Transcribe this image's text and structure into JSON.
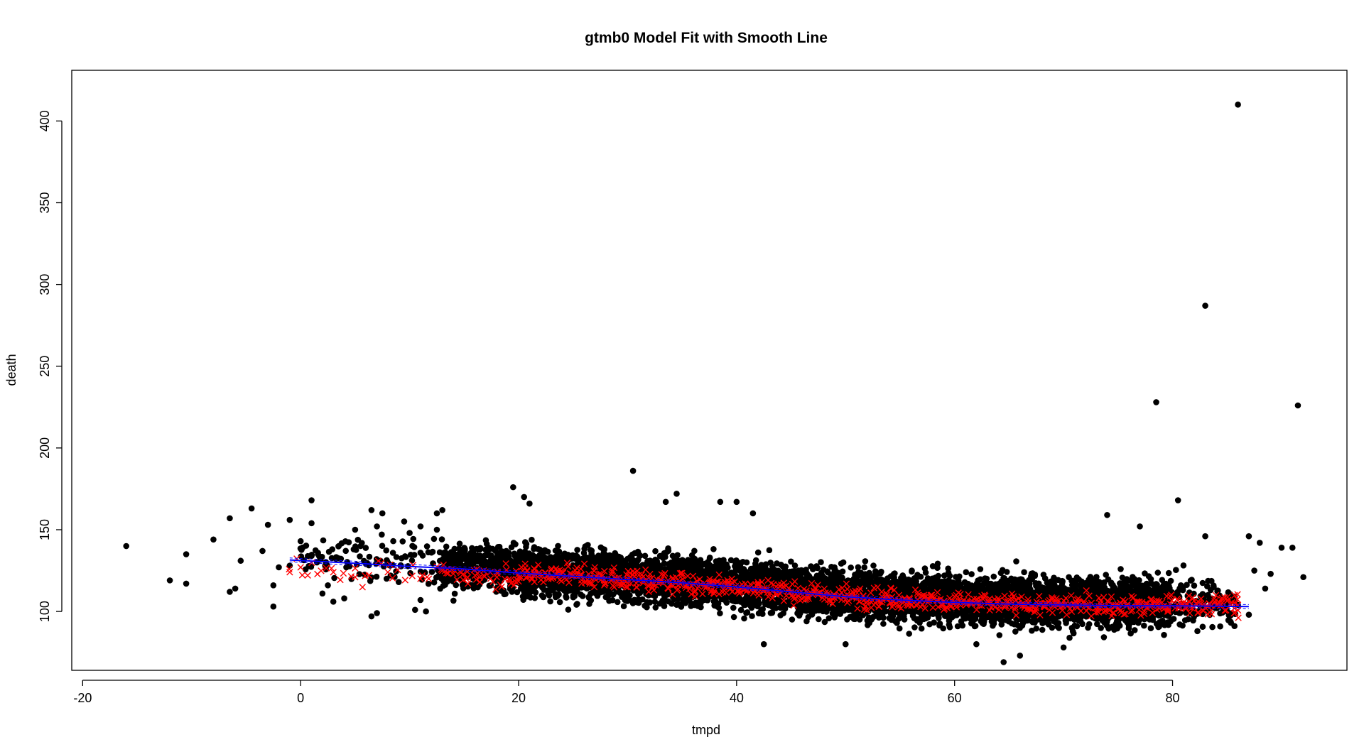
{
  "chart_data": {
    "type": "scatter",
    "title": "gtmb0 Model Fit with Smooth Line",
    "xlabel": "tmpd",
    "ylabel": "death",
    "xlim": [
      -21,
      96
    ],
    "ylim": [
      64,
      431
    ],
    "x_ticks": [
      -20,
      0,
      20,
      40,
      60,
      80
    ],
    "y_ticks": [
      100,
      150,
      200,
      250,
      300,
      350,
      400
    ],
    "x_tick_labels": [
      "-20",
      "0",
      "20",
      "40",
      "60",
      "80"
    ],
    "y_tick_labels": [
      "100",
      "150",
      "200",
      "250",
      "300",
      "350",
      "400"
    ],
    "grid": false,
    "legend": "none",
    "colors": {
      "observed": "#000000",
      "fitted": "#ff0000",
      "smooth": "#0000ff"
    },
    "series": [
      {
        "kind": "observed",
        "marker": "filled-circle",
        "points": [
          [
            -16,
            140
          ],
          [
            -12,
            119
          ],
          [
            -10.5,
            117
          ],
          [
            -10.5,
            135
          ],
          [
            -8,
            144
          ],
          [
            -6.5,
            157
          ],
          [
            -6.5,
            112
          ],
          [
            -6,
            114
          ],
          [
            -5.5,
            131
          ],
          [
            -4.5,
            163
          ],
          [
            -3.5,
            137
          ],
          [
            -3,
            153
          ],
          [
            -2.5,
            103
          ],
          [
            -2.5,
            116
          ],
          [
            -2,
            127
          ],
          [
            -1,
            128
          ],
          [
            -1,
            156
          ],
          [
            0,
            143
          ],
          [
            1,
            168
          ],
          [
            1,
            154
          ],
          [
            1.5,
            130
          ],
          [
            2,
            111
          ],
          [
            2.5,
            116
          ],
          [
            3,
            106
          ],
          [
            3.5,
            140
          ],
          [
            4,
            108
          ],
          [
            5,
            150
          ],
          [
            5.5,
            140
          ],
          [
            6,
            129
          ],
          [
            6.5,
            97
          ],
          [
            6.5,
            162
          ],
          [
            7,
            99
          ],
          [
            7,
            152
          ],
          [
            7.5,
            160
          ],
          [
            8,
            130
          ],
          [
            8.5,
            143
          ],
          [
            9,
            118
          ],
          [
            9.5,
            155
          ],
          [
            10,
            148
          ],
          [
            10.5,
            101
          ],
          [
            11,
            107
          ],
          [
            11,
            152
          ],
          [
            11.5,
            100
          ],
          [
            12,
            136
          ],
          [
            12.5,
            150
          ],
          [
            12.5,
            160
          ],
          [
            13,
            162
          ],
          [
            19.5,
            176
          ],
          [
            20.5,
            170
          ],
          [
            21,
            166
          ],
          [
            30.5,
            186
          ],
          [
            34.5,
            172
          ],
          [
            33.5,
            167
          ],
          [
            38.5,
            167
          ],
          [
            40,
            167
          ],
          [
            41.5,
            160
          ],
          [
            42.5,
            80
          ],
          [
            50,
            80
          ],
          [
            62,
            80
          ],
          [
            64.5,
            69
          ],
          [
            66,
            73
          ],
          [
            70,
            78
          ],
          [
            74,
            159
          ],
          [
            77,
            152
          ],
          [
            78.5,
            228
          ],
          [
            80.5,
            168
          ],
          [
            83,
            287
          ],
          [
            83,
            146
          ],
          [
            86,
            410
          ],
          [
            87,
            146
          ],
          [
            88,
            142
          ],
          [
            89,
            123
          ],
          [
            90,
            139
          ],
          [
            91,
            139
          ],
          [
            91.5,
            226
          ],
          [
            92,
            121
          ],
          [
            88.5,
            114
          ],
          [
            87.5,
            125
          ],
          [
            87,
            98
          ],
          [
            86,
            104
          ]
        ]
      },
      {
        "kind": "fitted",
        "marker": "x-cross",
        "points": [
          [
            -1,
            124
          ],
          [
            0,
            127
          ],
          [
            3,
            124
          ],
          [
            5,
            121
          ],
          [
            8,
            124
          ],
          [
            11,
            120
          ],
          [
            13,
            125
          ],
          [
            16,
            122
          ],
          [
            18,
            121
          ],
          [
            21,
            122
          ],
          [
            24,
            124
          ],
          [
            27,
            120
          ],
          [
            30,
            120
          ],
          [
            33,
            118
          ],
          [
            36,
            117
          ],
          [
            39,
            116
          ],
          [
            42,
            114
          ],
          [
            45,
            112
          ],
          [
            48,
            110
          ],
          [
            51,
            109
          ],
          [
            54,
            108
          ],
          [
            57,
            107
          ],
          [
            60,
            106
          ],
          [
            63,
            105
          ],
          [
            66,
            104
          ],
          [
            69,
            104
          ],
          [
            72,
            104
          ],
          [
            75,
            104
          ],
          [
            78,
            104
          ],
          [
            81,
            104
          ],
          [
            84,
            104
          ],
          [
            86,
            104
          ]
        ]
      },
      {
        "kind": "smooth",
        "marker": "line",
        "points": [
          [
            -1,
            131.5
          ],
          [
            5,
            129.5
          ],
          [
            10,
            127.5
          ],
          [
            15,
            126
          ],
          [
            20,
            123.5
          ],
          [
            25,
            121.5
          ],
          [
            30,
            119.5
          ],
          [
            35,
            117.5
          ],
          [
            40,
            115
          ],
          [
            45,
            112
          ],
          [
            50,
            109
          ],
          [
            55,
            107
          ],
          [
            60,
            105.5
          ],
          [
            65,
            104.5
          ],
          [
            70,
            104
          ],
          [
            75,
            103.5
          ],
          [
            80,
            103.5
          ],
          [
            84,
            103.2
          ],
          [
            87,
            103
          ]
        ]
      }
    ]
  }
}
